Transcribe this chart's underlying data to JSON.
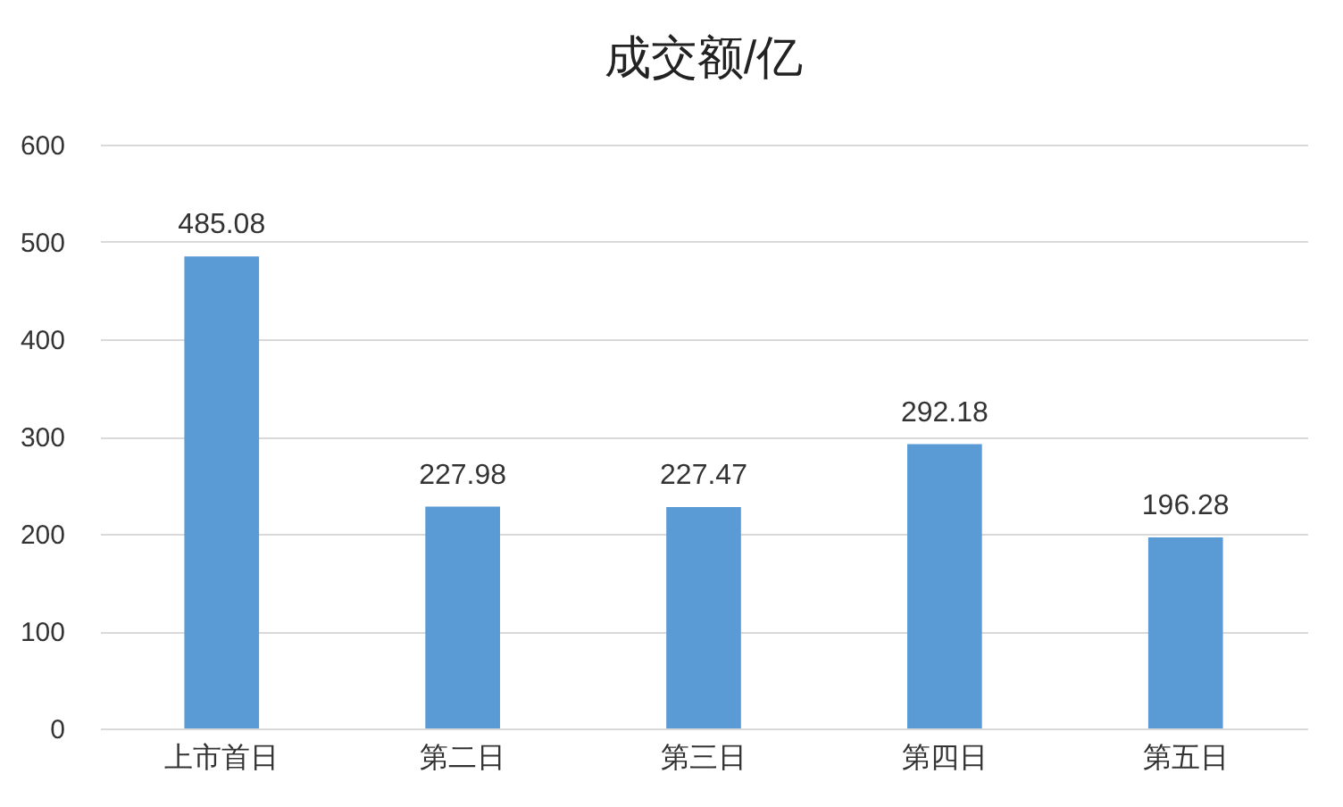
{
  "chart_data": {
    "type": "bar",
    "title": "成交额/亿",
    "categories": [
      "上市首日",
      "第二日",
      "第三日",
      "第四日",
      "第五日"
    ],
    "values": [
      485.08,
      227.98,
      227.47,
      292.18,
      196.28
    ],
    "color": "#5b9bd5",
    "ylim": [
      0,
      600
    ],
    "yticks": [
      0,
      100,
      200,
      300,
      400,
      500,
      600
    ],
    "grid": "y",
    "data_labels": true
  }
}
